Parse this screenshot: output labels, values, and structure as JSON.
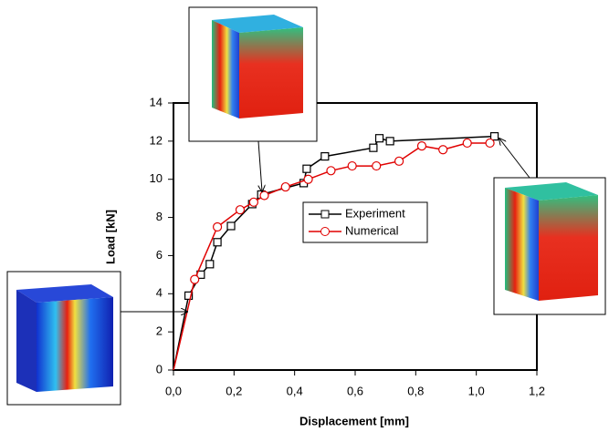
{
  "chart_data": {
    "type": "line",
    "x_label": "Displacement [mm]",
    "y_label": "Load [kN]",
    "xlim": [
      0,
      1.2
    ],
    "ylim": [
      0,
      14
    ],
    "xticks": [
      {
        "value": 0,
        "label": "0,0"
      },
      {
        "value": 0.2,
        "label": "0,2"
      },
      {
        "value": 0.4,
        "label": "0,4"
      },
      {
        "value": 0.6,
        "label": "0,6"
      },
      {
        "value": 0.8,
        "label": "0,8"
      },
      {
        "value": 1.0,
        "label": "1,0"
      },
      {
        "value": 1.2,
        "label": "1,2"
      }
    ],
    "yticks": [
      0,
      2,
      4,
      6,
      8,
      10,
      12,
      14
    ],
    "series": [
      {
        "name": "Experiment",
        "color": "#000000",
        "marker": "square",
        "x": [
          0,
          0.05,
          0.09,
          0.12,
          0.145,
          0.19,
          0.26,
          0.29,
          0.43,
          0.44,
          0.5,
          0.66,
          0.68,
          0.715,
          1.06
        ],
        "values": [
          0,
          3.9,
          5.0,
          5.55,
          6.7,
          7.55,
          8.7,
          9.2,
          9.8,
          10.55,
          11.2,
          11.65,
          12.15,
          12.0,
          12.25
        ]
      },
      {
        "name": "Numerical",
        "color": "#e00000",
        "marker": "circle",
        "x": [
          0,
          0.07,
          0.145,
          0.22,
          0.265,
          0.3,
          0.37,
          0.445,
          0.52,
          0.59,
          0.67,
          0.745,
          0.82,
          0.89,
          0.97,
          1.045
        ],
        "values": [
          0,
          4.75,
          7.5,
          8.4,
          8.8,
          9.15,
          9.6,
          10.0,
          10.45,
          10.7,
          10.7,
          10.95,
          11.75,
          11.55,
          11.9,
          11.9
        ]
      }
    ]
  }
}
